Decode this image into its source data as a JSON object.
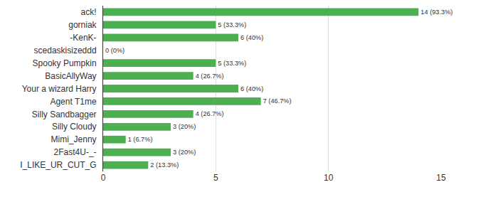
{
  "chart_data": {
    "type": "bar",
    "orientation": "horizontal",
    "categories": [
      "ack!",
      "gorniak",
      "-KenK-",
      "scedaskisizeddd",
      "Spooky Pumpkin",
      "BasicAllyWay",
      "Your a wizard Harry",
      "Agent T1me",
      "Silly Sandbagger",
      "Silly Cloudy",
      "Mimi_Jenny",
      "2Fast4U-_-",
      "I_LIKE_UR_CUT_G"
    ],
    "values": [
      14,
      5,
      6,
      0,
      5,
      4,
      6,
      7,
      4,
      3,
      1,
      3,
      2
    ],
    "value_labels": [
      "14 (93.3%)",
      "5 (33.3%)",
      "6 (40%)",
      "0 (0%)",
      "5 (33.3%)",
      "4 (26.7%)",
      "6 (40%)",
      "7 (46.7%)",
      "4 (26.7%)",
      "3 (20%)",
      "1 (6.7%)",
      "3 (20%)",
      "2 (13.3%)"
    ],
    "data_labels": true,
    "color": "#4caf50",
    "xlim": [
      0,
      15
    ],
    "xticks": [
      0,
      5,
      10,
      15
    ],
    "grid": true
  }
}
